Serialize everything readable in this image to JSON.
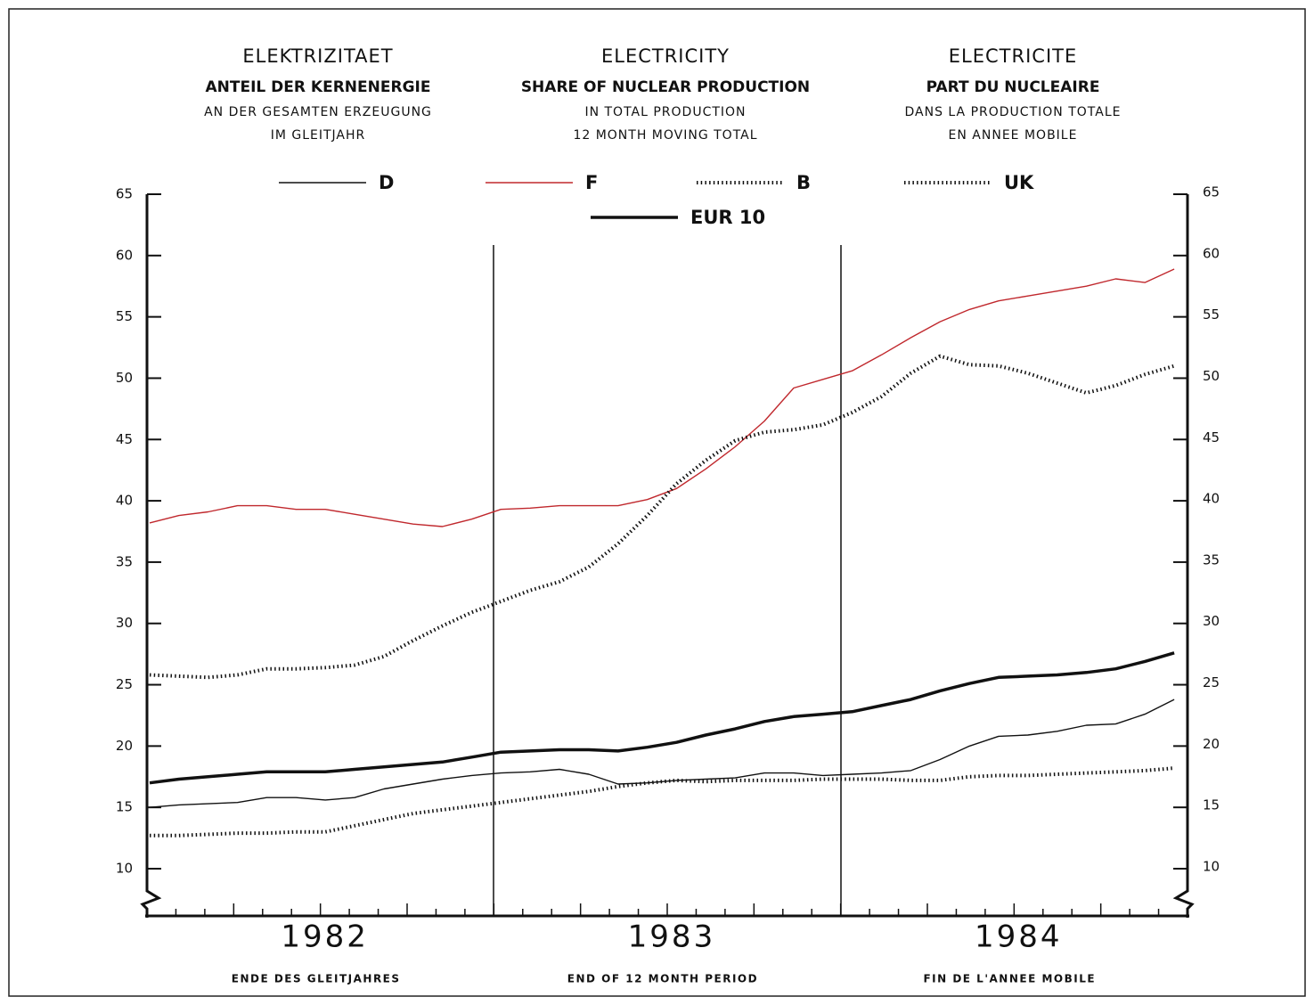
{
  "chart_data": {
    "type": "line",
    "title_blocks": [
      [
        "ELEKTRIZITAET",
        "ANTEIL DER KERNENERGIE",
        "AN DER GESAMTEN ERZEUGUNG",
        "IM GLEITJAHR"
      ],
      [
        "ELECTRICITY",
        "SHARE OF NUCLEAR PRODUCTION",
        "IN TOTAL PRODUCTION",
        "12 MONTH MOVING TOTAL"
      ],
      [
        "ELECTRICITE",
        "PART DU NUCLEAIRE",
        "DANS LA PRODUCTION TOTALE",
        "EN ANNEE MOBILE"
      ]
    ],
    "year_labels": [
      "1982",
      "1983",
      "1984"
    ],
    "x_axis_labels": [
      "ENDE DES GLEITJAHRES",
      "END OF 12 MONTH PERIOD",
      "FIN DE L'ANNEE MOBILE"
    ],
    "categories": [
      null,
      null,
      null,
      null,
      null,
      null,
      null,
      null,
      null,
      null,
      null,
      null,
      null,
      null,
      null,
      null,
      null,
      null,
      null,
      null,
      null,
      null,
      null,
      null,
      null,
      null,
      null,
      null,
      null,
      null,
      null,
      null,
      null,
      null,
      null,
      null
    ],
    "ylim": [
      10,
      65
    ],
    "yticks": [
      10,
      15,
      20,
      25,
      30,
      35,
      40,
      45,
      50,
      55,
      60,
      65
    ],
    "series": [
      {
        "name": "D",
        "color": "#111111",
        "style": "thin",
        "values": [
          15.0,
          15.2,
          15.3,
          15.4,
          15.8,
          15.8,
          15.6,
          15.8,
          16.5,
          16.9,
          17.3,
          17.6,
          17.8,
          17.9,
          18.1,
          17.7,
          16.9,
          17.0,
          17.2,
          17.3,
          17.4,
          17.8,
          17.8,
          17.6,
          17.7,
          17.8,
          18.0,
          18.9,
          20.0,
          20.8,
          20.9,
          21.2,
          21.7,
          21.8,
          22.6,
          23.8
        ]
      },
      {
        "name": "F",
        "color": "#c0282d",
        "style": "thin",
        "values": [
          38.2,
          38.8,
          39.1,
          39.6,
          39.6,
          39.3,
          39.3,
          38.9,
          38.5,
          38.1,
          37.9,
          38.5,
          39.3,
          39.4,
          39.6,
          39.6,
          39.6,
          40.1,
          41.0,
          42.6,
          44.4,
          46.5,
          49.2,
          49.9,
          50.6,
          51.9,
          53.3,
          54.6,
          55.6,
          56.3,
          56.7,
          57.1,
          57.5,
          58.1,
          57.8,
          58.9
        ]
      },
      {
        "name": "B",
        "color": "#111111",
        "style": "dotted",
        "values": [
          25.8,
          25.7,
          25.6,
          25.8,
          26.3,
          26.3,
          26.4,
          26.6,
          27.3,
          28.6,
          29.8,
          30.9,
          31.8,
          32.7,
          33.4,
          34.6,
          36.5,
          38.8,
          41.4,
          43.3,
          44.9,
          45.6,
          45.8,
          46.2,
          47.2,
          48.5,
          50.4,
          51.8,
          51.1,
          51.0,
          50.4,
          49.6,
          48.8,
          49.4,
          50.3,
          51.0
        ]
      },
      {
        "name": "UK",
        "color": "#111111",
        "style": "dotted",
        "values": [
          12.7,
          12.7,
          12.8,
          12.9,
          12.9,
          13.0,
          13.0,
          13.5,
          14.0,
          14.5,
          14.8,
          15.1,
          15.4,
          15.7,
          16.0,
          16.3,
          16.7,
          17.0,
          17.2,
          17.1,
          17.2,
          17.2,
          17.2,
          17.3,
          17.3,
          17.3,
          17.2,
          17.2,
          17.5,
          17.6,
          17.6,
          17.7,
          17.8,
          17.9,
          18.0,
          18.2
        ]
      },
      {
        "name": "EUR 10",
        "color": "#111111",
        "style": "thick",
        "values": [
          17.0,
          17.3,
          17.5,
          17.7,
          17.9,
          17.9,
          17.9,
          18.1,
          18.3,
          18.5,
          18.7,
          19.1,
          19.5,
          19.6,
          19.7,
          19.7,
          19.6,
          19.9,
          20.3,
          20.9,
          21.4,
          22.0,
          22.4,
          22.6,
          22.8,
          23.3,
          23.8,
          24.5,
          25.1,
          25.6,
          25.7,
          25.8,
          26.0,
          26.3,
          26.9,
          27.6
        ]
      }
    ]
  }
}
